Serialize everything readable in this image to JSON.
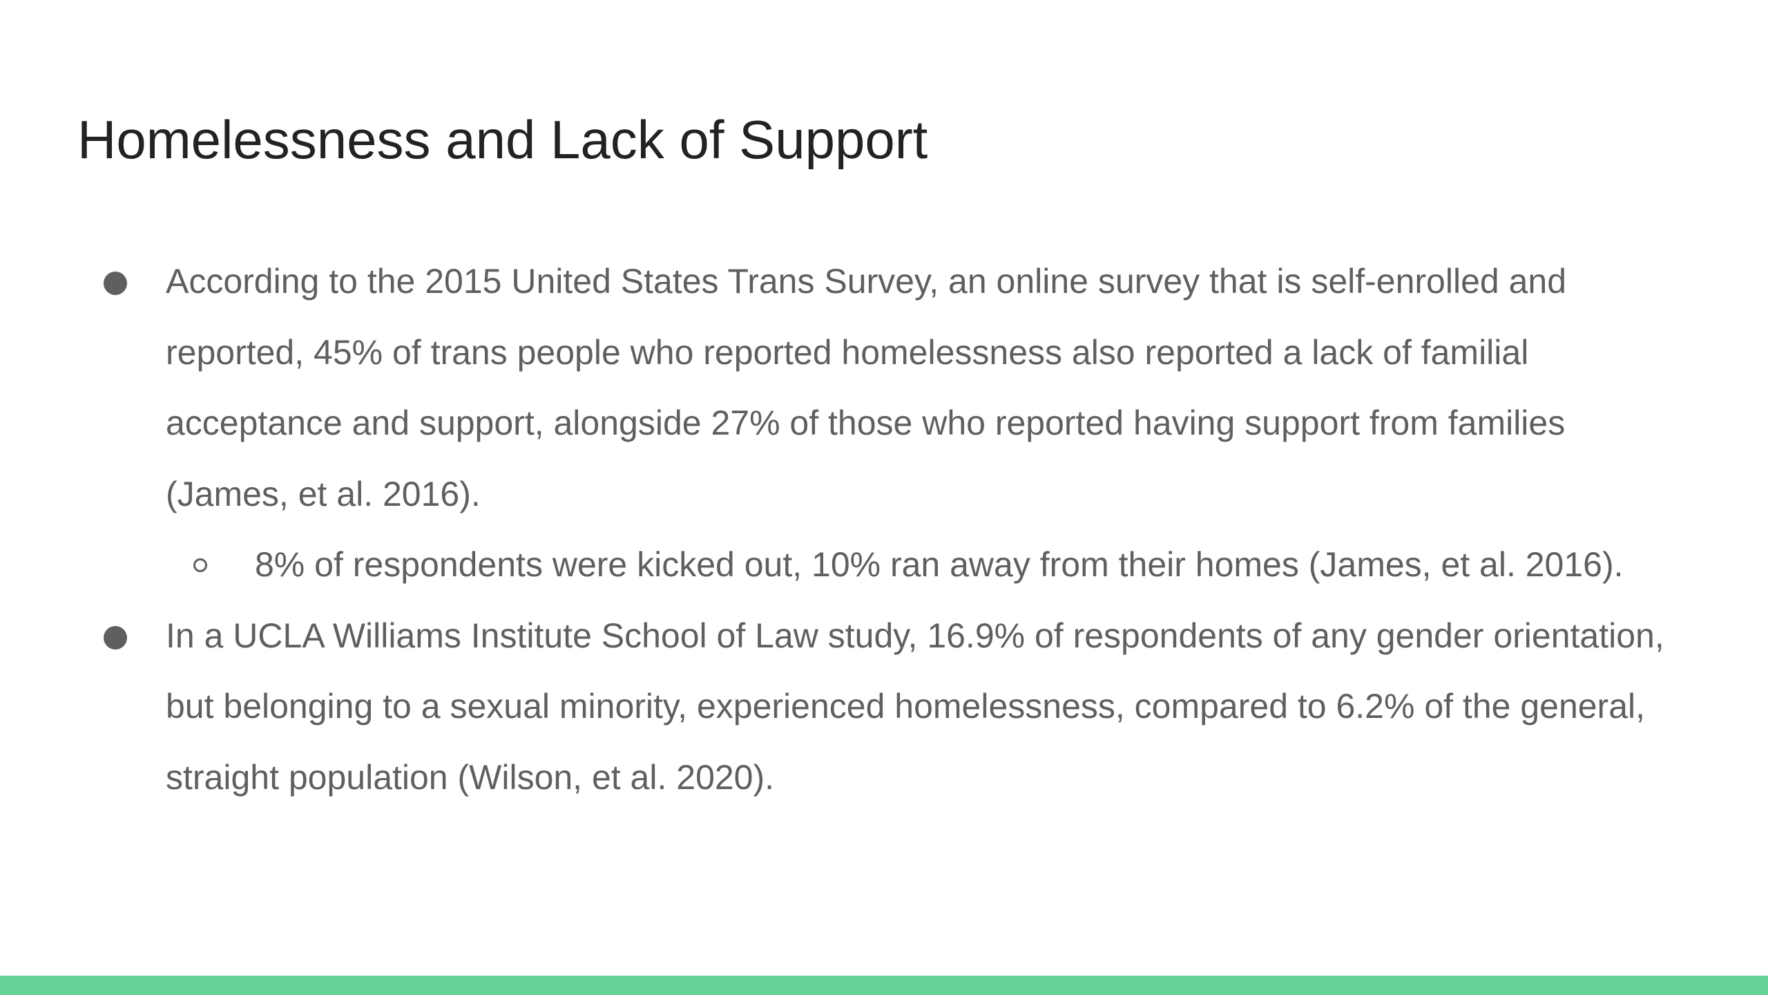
{
  "slide": {
    "title": "Homelessness and Lack of Support",
    "bullets": [
      {
        "level": 1,
        "text": "According to the 2015 United States Trans Survey, an online survey that is self-enrolled and reported, 45% of trans people who reported homelessness also reported a lack of familial acceptance and support, alongside 27% of those who reported having support from families (James, et al. 2016)."
      },
      {
        "level": 2,
        "text": "8% of respondents were kicked out, 10% ran away from their homes (James, et al. 2016)."
      },
      {
        "level": 1,
        "text": "In a UCLA Williams Institute School of Law study, 16.9% of respondents of any gender orientation, but belonging to a sexual minority, experienced homelessness, compared to 6.2% of the general, straight population (Wilson, et al. 2020)."
      }
    ]
  },
  "theme": {
    "accent_color": "#66d197",
    "title_color": "#222222",
    "body_color": "#5f5f5f",
    "background_color": "#ffffff"
  }
}
